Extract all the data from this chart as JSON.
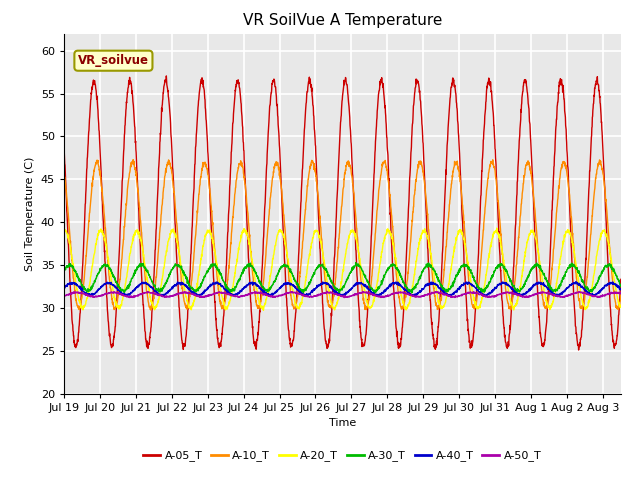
{
  "title": "VR SoilVue A Temperature",
  "ylabel": "Soil Temperature (C)",
  "xlabel": "Time",
  "annotation": "VR_soilvue",
  "ylim": [
    20,
    62
  ],
  "yticks": [
    20,
    25,
    30,
    35,
    40,
    45,
    50,
    55,
    60
  ],
  "x_labels": [
    "Jul 19",
    "Jul 20",
    "Jul 21",
    "Jul 22",
    "Jul 23",
    "Jul 24",
    "Jul 25",
    "Jul 26",
    "Jul 27",
    "Jul 28",
    "Jul 29",
    "Jul 30",
    "Jul 31",
    "Aug 1",
    "Aug 2",
    "Aug 3"
  ],
  "series_names": [
    "A-05_T",
    "A-10_T",
    "A-20_T",
    "A-30_T",
    "A-40_T",
    "A-50_T"
  ],
  "series_colors": [
    "#cc0000",
    "#ff8c00",
    "#ffff00",
    "#00bb00",
    "#0000cc",
    "#aa00aa"
  ],
  "plot_bg_color": "#e8e8e8",
  "grid_color": "white",
  "title_fontsize": 11,
  "tick_fontsize": 8,
  "label_fontsize": 8,
  "legend_fontsize": 8,
  "n_days": 15.5,
  "samples_per_day": 144
}
